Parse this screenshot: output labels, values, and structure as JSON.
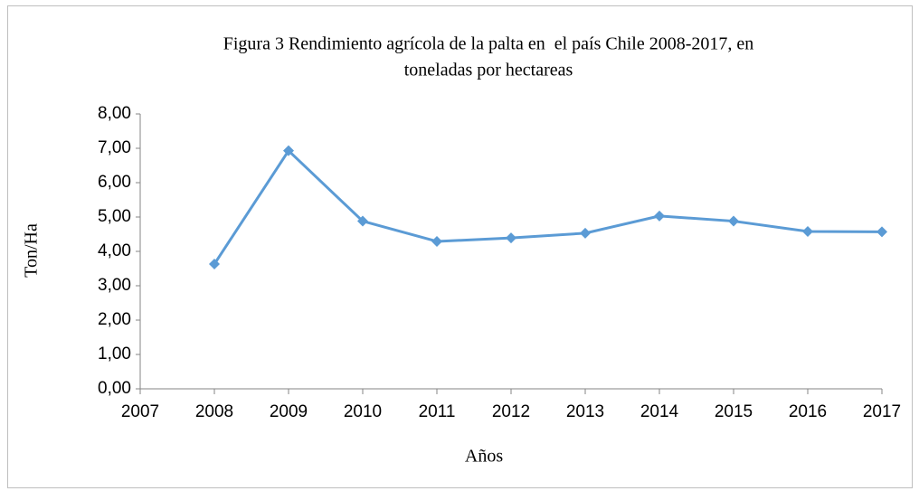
{
  "chart_data": {
    "type": "line",
    "title": [
      "Figura 3 Rendimiento agrícola de la palta en  el país Chile 2008-2017, en",
      "toneladas por hectareas"
    ],
    "x_label": "Años",
    "y_label": "Ton/Ha",
    "x": [
      2008,
      2009,
      2010,
      2011,
      2012,
      2013,
      2014,
      2015,
      2016,
      2017
    ],
    "series": [
      {
        "name": "Ton/Ha",
        "color": "#5b9bd5",
        "values": [
          3.63,
          6.93,
          4.88,
          4.29,
          4.39,
          4.53,
          5.03,
          4.88,
          4.58,
          4.57
        ]
      }
    ],
    "xlim": [
      2007,
      2017
    ],
    "xticks": [
      2007,
      2008,
      2009,
      2010,
      2011,
      2012,
      2013,
      2014,
      2015,
      2016,
      2017
    ],
    "ylim": [
      0,
      8
    ],
    "yticks": [
      {
        "value": 0,
        "label": "0,00"
      },
      {
        "value": 1,
        "label": "1,00"
      },
      {
        "value": 2,
        "label": "2,00"
      },
      {
        "value": 3,
        "label": "3,00"
      },
      {
        "value": 4,
        "label": "4,00"
      },
      {
        "value": 5,
        "label": "5,00"
      },
      {
        "value": 6,
        "label": "6,00"
      },
      {
        "value": 7,
        "label": "7,00"
      },
      {
        "value": 8,
        "label": "8,00"
      }
    ],
    "grid": false
  }
}
